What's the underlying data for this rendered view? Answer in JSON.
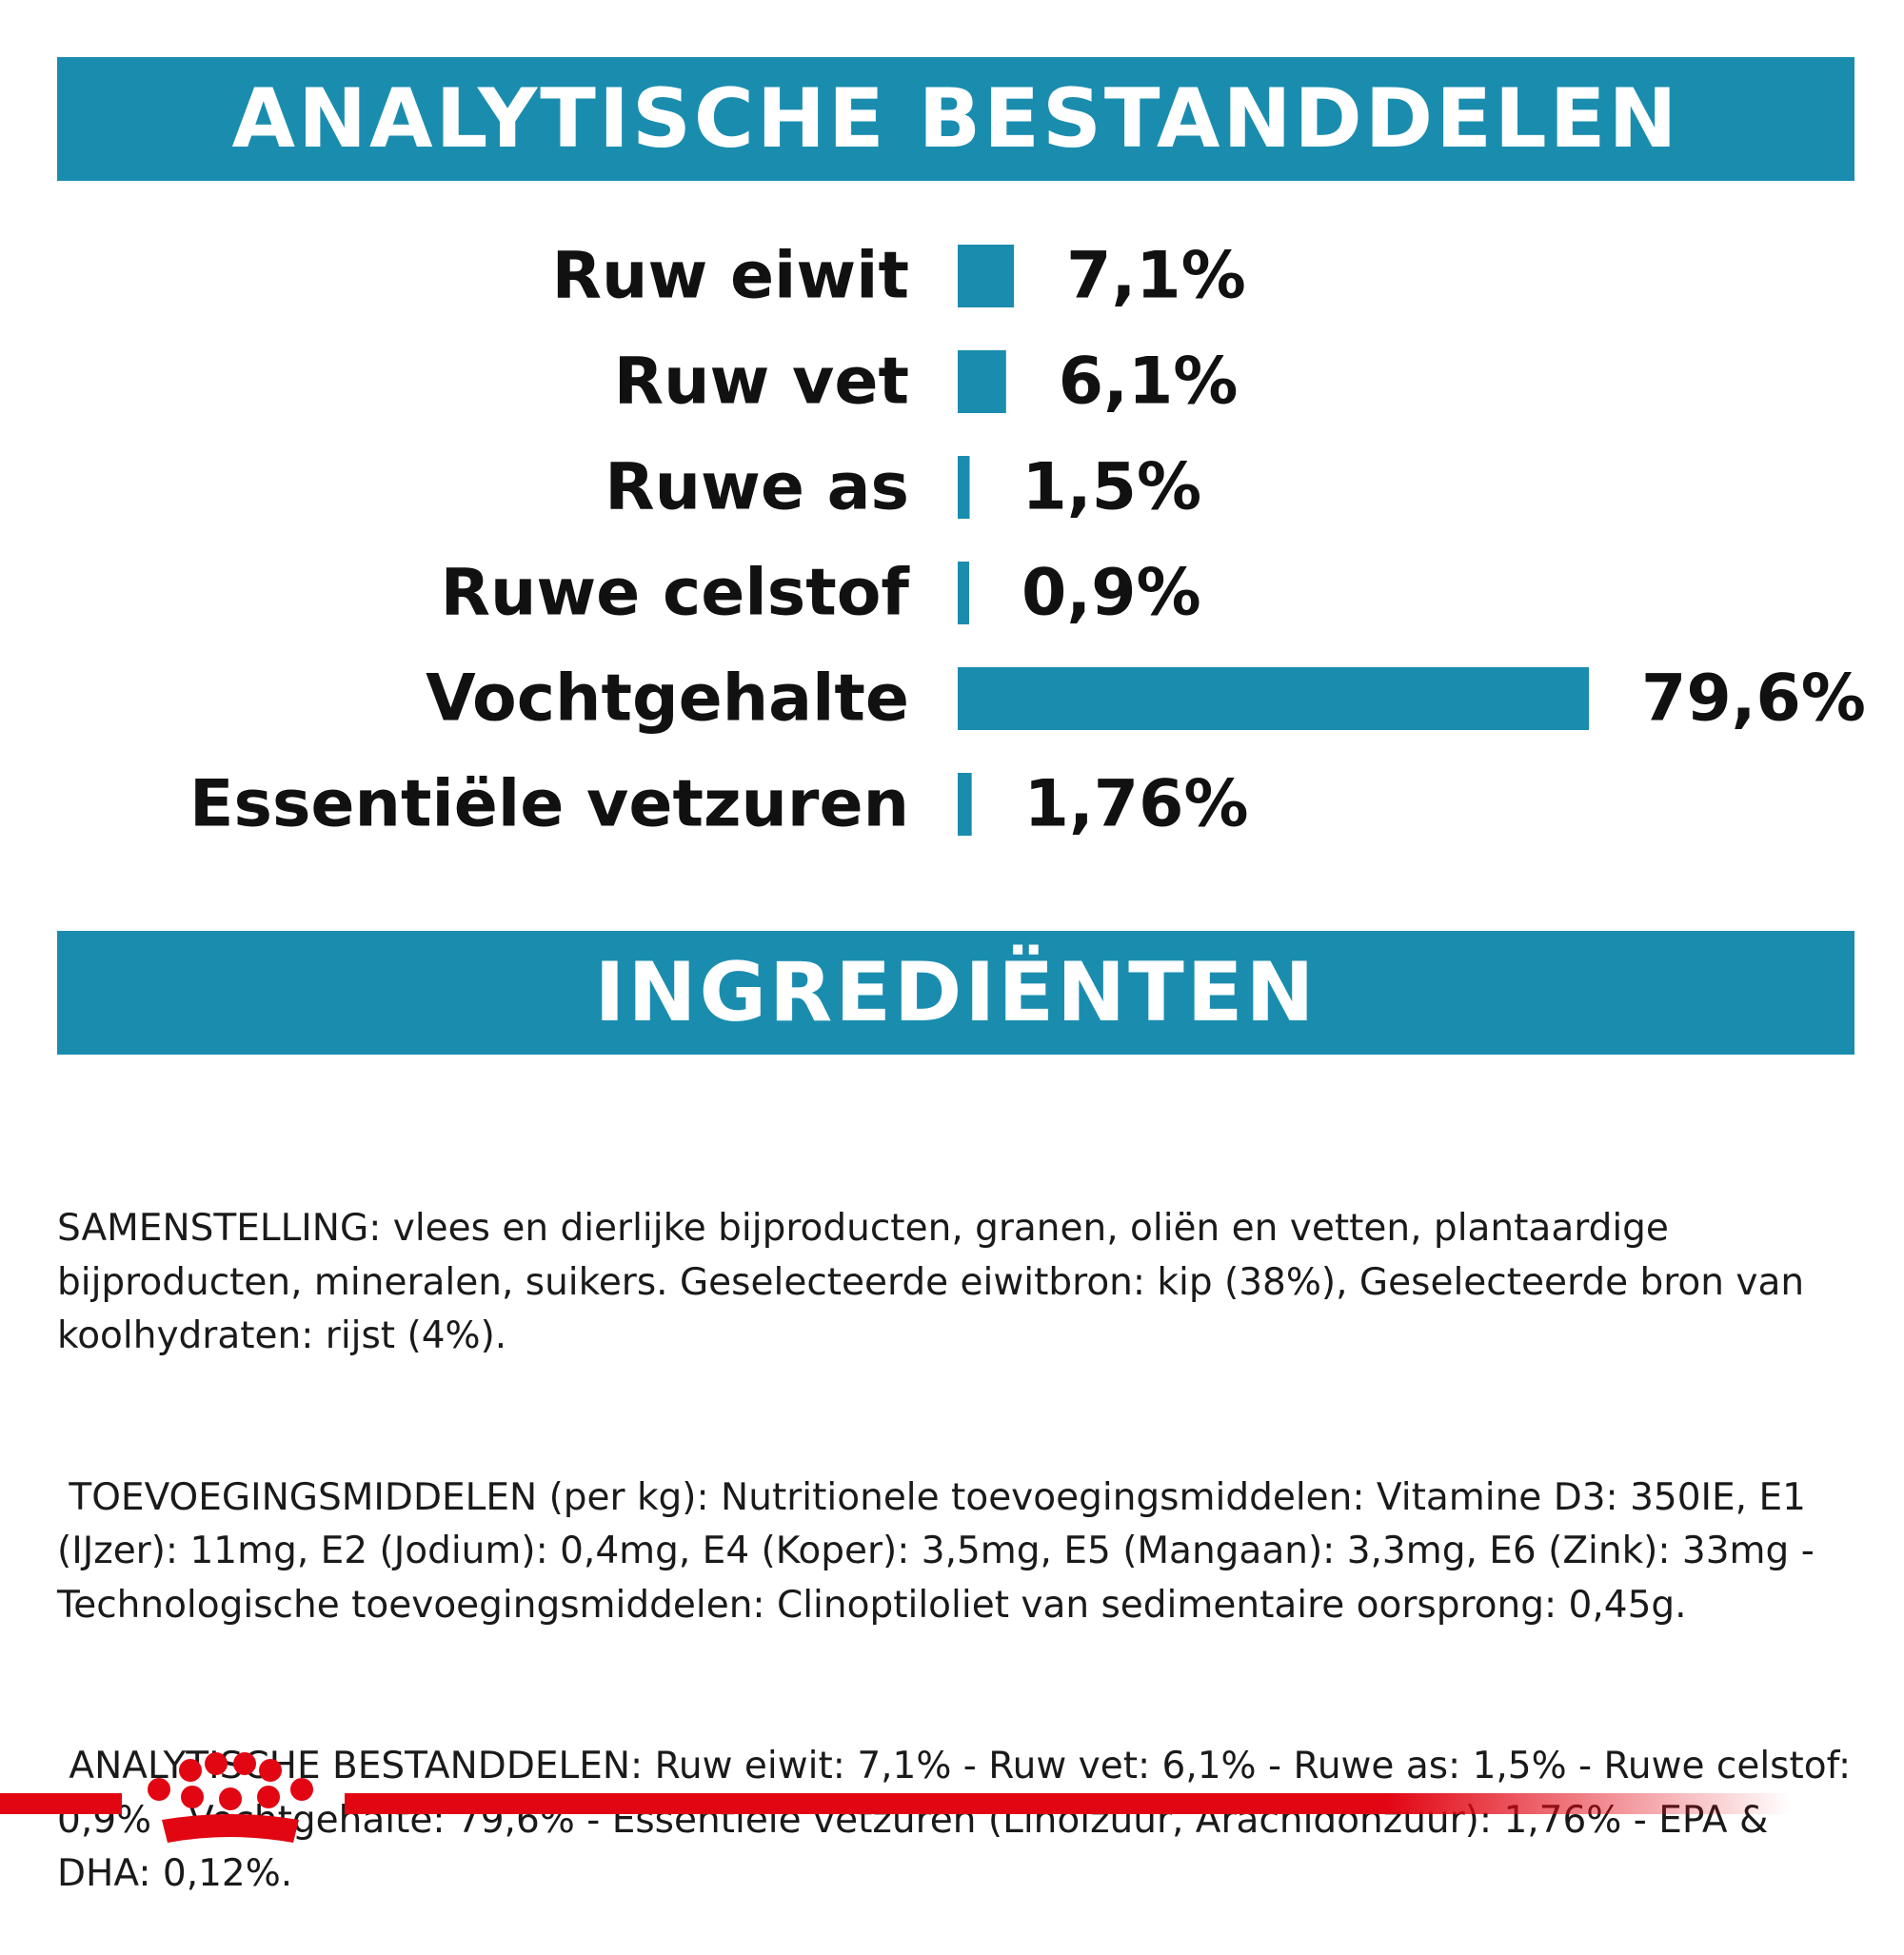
{
  "sections": {
    "analytic_title": "ANALYTISCHE BESTANDDELEN",
    "ingredients_title": "INGREDIËNTEN"
  },
  "chart_data": {
    "type": "bar",
    "orientation": "horizontal",
    "categories": [
      "Ruw eiwit",
      "Ruw vet",
      "Ruwe as",
      "Ruwe celstof",
      "Vochtgehalte",
      "Essentiële vetzuren"
    ],
    "values": [
      7.1,
      6.1,
      1.5,
      0.9,
      79.6,
      1.76
    ],
    "value_labels": [
      "7,1%",
      "6,1%",
      "1,5%",
      "0,9%",
      "79,6%",
      "1,76%"
    ],
    "bar_color": "#1a8daf",
    "xlim": [
      0,
      79.6
    ]
  },
  "ingredients": {
    "paragraphs": [
      "SAMENSTELLING: vlees en dierlijke bijproducten, granen, oliën en vetten, plantaardige bijproducten, mineralen, suikers. Geselecteerde eiwitbron: kip (38%), Geselecteerde bron van koolhydraten: rijst (4%).",
      " TOEVOEGINGSMIDDELEN (per kg): Nutritionele toevoegingsmiddelen: Vitamine D3: 350IE, E1 (IJzer): 11mg, E2 (Jodium): 0,4mg, E4 (Koper): 3,5mg, E5 (Mangaan): 3,3mg, E6 (Zink): 33mg - Technologische toevoegingsmiddelen: Clinoptiloliet van sedimentaire oorsprong: 0,45g.",
      " ANALYTISCHE BESTANDDELEN: Ruw eiwit: 7,1% - Ruw vet: 6,1% - Ruwe as: 1,5% - Ruwe celstof: 0,9% - Vochtgehalte: 79,6% - Essentiële vetzuren (Linolzuur, Arachidonzuur): 1,76% - EPA & DHA: 0,12%."
    ]
  },
  "brand": {
    "logo_icon": "royal-canin-crown-icon",
    "accent_color": "#e20613"
  }
}
